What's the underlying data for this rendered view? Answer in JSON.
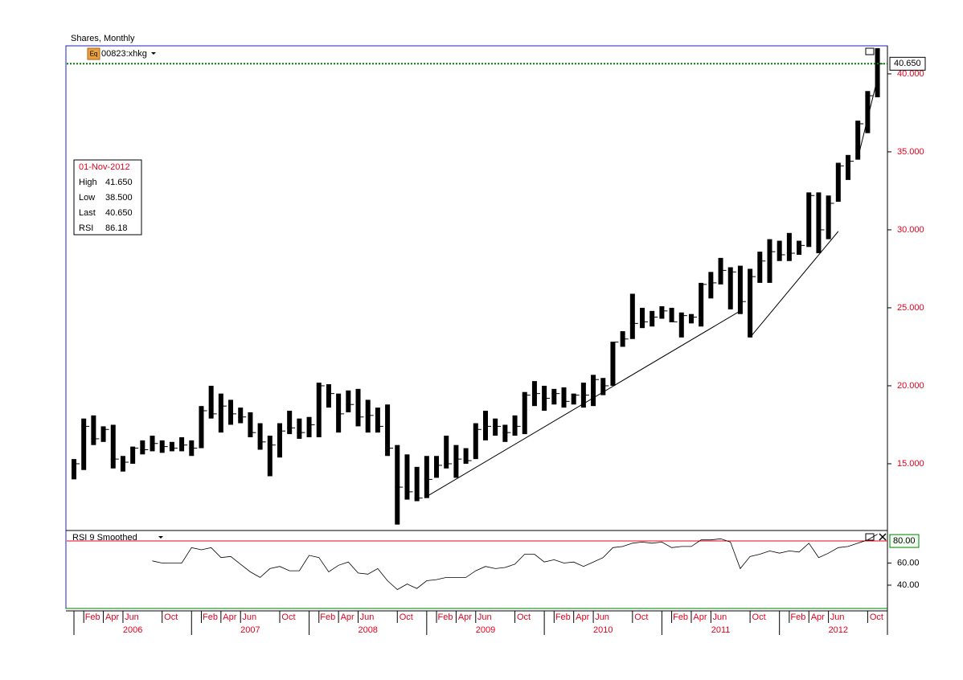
{
  "header": {
    "title": "Shares, Monthly",
    "badge": "Eq"
  },
  "info_box": {
    "date": "01-Nov-2012",
    "rows": [
      [
        "High",
        "41.650"
      ],
      [
        "Low",
        "38.500"
      ],
      [
        "Last",
        "40.650"
      ],
      [
        "RSI",
        "86.18"
      ]
    ]
  },
  "chart_data": [
    {
      "type": "ohlc",
      "categories": [
        "2006-01",
        "2006-02",
        "2006-03",
        "2006-04",
        "2006-05",
        "2006-06",
        "2006-07",
        "2006-08",
        "2006-09",
        "2006-10",
        "2006-11",
        "2006-12",
        "2007-01",
        "2007-02",
        "2007-03",
        "2007-04",
        "2007-05",
        "2007-06",
        "2007-07",
        "2007-08",
        "2007-09",
        "2007-10",
        "2007-11",
        "2007-12",
        "2008-01",
        "2008-02",
        "2008-03",
        "2008-04",
        "2008-05",
        "2008-06",
        "2008-07",
        "2008-08",
        "2008-09",
        "2008-10",
        "2008-11",
        "2008-12",
        "2009-01",
        "2009-02",
        "2009-03",
        "2009-04",
        "2009-05",
        "2009-06",
        "2009-07",
        "2009-08",
        "2009-09",
        "2009-10",
        "2009-11",
        "2009-12",
        "2010-01",
        "2010-02",
        "2010-03",
        "2010-04",
        "2010-05",
        "2010-06",
        "2010-07",
        "2010-08",
        "2010-09",
        "2010-10",
        "2010-11",
        "2010-12",
        "2011-01",
        "2011-02",
        "2011-03",
        "2011-04",
        "2011-05",
        "2011-06",
        "2011-07",
        "2011-08",
        "2011-09",
        "2011-10",
        "2011-11",
        "2011-12",
        "2012-01",
        "2012-02",
        "2012-03",
        "2012-04",
        "2012-05",
        "2012-06",
        "2012-07",
        "2012-08",
        "2012-09",
        "2012-10",
        "2012-11"
      ],
      "series": [
        {
          "name": "00823:xhkg",
          "color": "#000000",
          "high": [
            15.3,
            17.9,
            18.1,
            17.4,
            17.5,
            15.5,
            16.1,
            16.5,
            16.8,
            16.5,
            16.4,
            16.7,
            16.5,
            18.7,
            20.0,
            19.5,
            19.1,
            18.6,
            18.3,
            17.6,
            16.8,
            17.6,
            18.4,
            17.9,
            18.0,
            20.2,
            20.1,
            19.5,
            19.7,
            19.8,
            19.1,
            18.6,
            18.8,
            16.2,
            15.6,
            14.8,
            15.5,
            15.5,
            16.8,
            16.2,
            16.0,
            17.6,
            18.4,
            17.9,
            17.5,
            18.1,
            19.6,
            20.3,
            20.0,
            19.8,
            19.9,
            19.5,
            20.2,
            20.7,
            20.5,
            22.8,
            23.5,
            25.9,
            25.0,
            24.8,
            25.1,
            25.0,
            24.7,
            24.6,
            26.6,
            27.3,
            28.2,
            27.6,
            27.7,
            27.5,
            28.6,
            29.4,
            29.3,
            29.8,
            29.3,
            32.4,
            32.4,
            32.2,
            34.3,
            34.8,
            37.0,
            38.9,
            41.65
          ],
          "low": [
            14.0,
            14.6,
            16.2,
            16.4,
            14.7,
            14.5,
            15.0,
            15.6,
            15.8,
            15.7,
            15.8,
            15.8,
            15.5,
            16.0,
            17.9,
            17.0,
            17.5,
            17.6,
            16.7,
            15.9,
            14.2,
            15.4,
            16.9,
            16.6,
            16.7,
            16.7,
            18.6,
            17.0,
            18.3,
            17.4,
            17.0,
            17.0,
            15.5,
            11.1,
            12.7,
            12.6,
            12.8,
            14.1,
            14.7,
            14.1,
            15.0,
            15.3,
            16.5,
            16.8,
            16.4,
            16.8,
            16.9,
            18.7,
            18.4,
            18.8,
            18.6,
            18.8,
            18.6,
            18.7,
            19.4,
            20.0,
            22.5,
            23.0,
            23.7,
            23.8,
            24.3,
            24.1,
            23.1,
            24.0,
            23.8,
            25.6,
            26.5,
            24.9,
            24.6,
            23.1,
            26.6,
            26.6,
            28.0,
            28.0,
            28.4,
            28.9,
            28.5,
            29.4,
            31.8,
            33.2,
            34.5,
            36.2,
            38.5
          ],
          "close": [
            15.0,
            17.4,
            16.6,
            17.2,
            15.3,
            15.1,
            16.0,
            15.9,
            16.3,
            16.1,
            16.0,
            16.2,
            16.0,
            18.4,
            18.2,
            18.7,
            18.2,
            18.0,
            17.0,
            16.4,
            16.2,
            17.1,
            17.3,
            17.0,
            17.5,
            20.0,
            19.5,
            18.2,
            18.8,
            18.0,
            18.1,
            17.4,
            16.0,
            13.5,
            13.2,
            12.8,
            14.0,
            14.9,
            15.0,
            15.3,
            15.2,
            17.2,
            17.4,
            17.4,
            17.0,
            17.4,
            19.4,
            19.5,
            19.2,
            19.5,
            19.0,
            19.4,
            19.4,
            20.4,
            20.0,
            22.8,
            23.0,
            24.0,
            24.1,
            24.4,
            24.8,
            24.1,
            24.5,
            24.4,
            26.5,
            26.6,
            27.4,
            27.3,
            25.4,
            27.0,
            28.0,
            28.6,
            28.4,
            28.5,
            29.0,
            32.2,
            30.0,
            31.7,
            34.1,
            34.4,
            36.8,
            38.6,
            40.65
          ]
        }
      ],
      "ylim": [
        10.72,
        41.8
      ],
      "yticks": [
        {
          "value": 15,
          "label": "15.000"
        },
        {
          "value": 20,
          "label": "20.000"
        },
        {
          "value": 25,
          "label": "25.000"
        },
        {
          "value": 30,
          "label": "30.000"
        },
        {
          "value": 35,
          "label": "35.000"
        },
        {
          "value": 40,
          "label": "40.000"
        }
      ],
      "xticks": [
        {
          "value": "2006-02",
          "label": "Feb"
        },
        {
          "value": "2006-04",
          "label": "Apr"
        },
        {
          "value": "2006-06",
          "label": "Jun"
        },
        {
          "value": "2006-10",
          "label": "Oct"
        },
        {
          "value": "2007-02",
          "label": "Feb"
        },
        {
          "value": "2007-04",
          "label": "Apr"
        },
        {
          "value": "2007-06",
          "label": "Jun"
        },
        {
          "value": "2007-10",
          "label": "Oct"
        },
        {
          "value": "2008-02",
          "label": "Feb"
        },
        {
          "value": "2008-04",
          "label": "Apr"
        },
        {
          "value": "2008-06",
          "label": "Jun"
        },
        {
          "value": "2008-10",
          "label": "Oct"
        },
        {
          "value": "2009-02",
          "label": "Feb"
        },
        {
          "value": "2009-04",
          "label": "Apr"
        },
        {
          "value": "2009-06",
          "label": "Jun"
        },
        {
          "value": "2009-10",
          "label": "Oct"
        },
        {
          "value": "2010-02",
          "label": "Feb"
        },
        {
          "value": "2010-04",
          "label": "Apr"
        },
        {
          "value": "2010-06",
          "label": "Jun"
        },
        {
          "value": "2010-10",
          "label": "Oct"
        },
        {
          "value": "2011-02",
          "label": "Feb"
        },
        {
          "value": "2011-04",
          "label": "Apr"
        },
        {
          "value": "2011-06",
          "label": "Jun"
        },
        {
          "value": "2011-10",
          "label": "Oct"
        },
        {
          "value": "2012-02",
          "label": "Feb"
        },
        {
          "value": "2012-04",
          "label": "Apr"
        },
        {
          "value": "2012-06",
          "label": "Jun"
        },
        {
          "value": "2012-10",
          "label": "Oct"
        }
      ],
      "years": [
        "2006",
        "2007",
        "2008",
        "2009",
        "2010",
        "2011",
        "2012"
      ],
      "last_price": {
        "value": 40.65,
        "label": "40.650",
        "color": "#008000"
      },
      "trendlines": [
        {
          "x": [
            "2009-01",
            "2011-09"
          ],
          "y": [
            12.9,
            24.8
          ]
        },
        {
          "x": [
            "2011-10",
            "2012-07"
          ],
          "y": [
            23.1,
            29.9
          ]
        },
        {
          "x": [
            "2012-09",
            "2012-11"
          ],
          "y": [
            34.6,
            39.7
          ]
        }
      ]
    },
    {
      "type": "line",
      "series": [
        {
          "name": "RSI 9 Smoothed",
          "color": "#000000",
          "values": [
            null,
            null,
            null,
            null,
            null,
            null,
            null,
            null,
            62,
            60,
            60,
            60,
            74,
            72,
            74,
            65,
            66,
            59,
            52,
            47,
            55,
            57,
            53,
            53,
            67,
            65,
            52,
            58,
            61,
            51,
            50,
            55,
            44,
            36,
            41,
            37,
            44,
            45,
            47,
            47,
            47,
            53,
            57,
            55,
            56,
            59,
            68,
            68,
            61,
            63,
            60,
            61,
            57,
            61,
            65,
            74,
            75,
            78,
            79,
            78,
            79,
            74,
            75,
            75,
            81,
            81,
            82,
            79,
            55,
            66,
            68,
            71,
            69,
            71,
            70,
            78,
            65,
            69,
            74,
            75,
            78,
            81,
            86.18
          ]
        }
      ],
      "ylim": [
        18.9,
        89.5
      ],
      "yticks": [
        {
          "value": 40,
          "label": "40.00"
        },
        {
          "value": 60,
          "label": "60.00"
        }
      ],
      "level": {
        "value": 80,
        "label": "80.00",
        "color": "#e8001c"
      }
    }
  ]
}
